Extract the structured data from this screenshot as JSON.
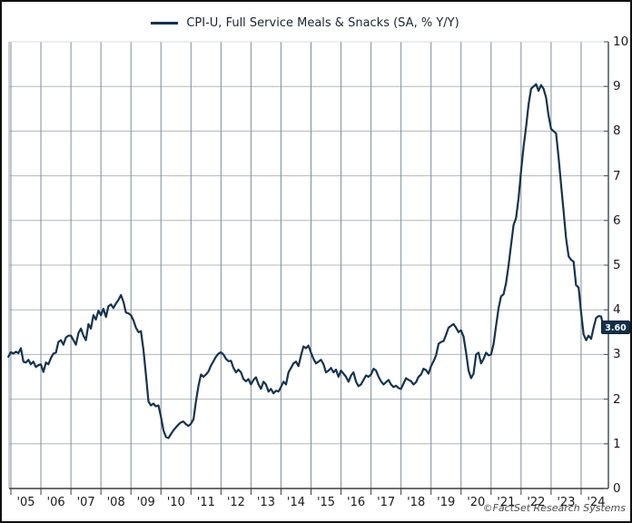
{
  "legend": {
    "label": "CPI-U, Full Service Meals & Snacks (SA, % Y/Y)"
  },
  "footer": {
    "copyright": "©FactSet Research Systems"
  },
  "last_value_badge": "3.60",
  "colors": {
    "line": "#16334e",
    "badge_bg": "#14304a",
    "grid_vertical": "#7f8c98",
    "grid_horizontal": "#aeb7bf",
    "bottom_axis": "#3d3d3d",
    "right_axis": "#46525c",
    "top_border": "#d9dde0",
    "left_border": "#98a2ab",
    "label_text": "#1a1a1a"
  },
  "chart_data": {
    "type": "line",
    "title": "CPI-U, Full Service Meals & Snacks (SA, % Y/Y)",
    "xlabel": "",
    "ylabel": "",
    "ylim": [
      0,
      10
    ],
    "y_ticks": [
      0,
      1,
      2,
      3,
      4,
      5,
      6,
      7,
      8,
      9,
      10
    ],
    "x_ticklabels": [
      "'05",
      "'06",
      "'07",
      "'08",
      "'09",
      "'10",
      "'11",
      "'12",
      "'13",
      "'14",
      "'15",
      "'16",
      "'17",
      "'18",
      "'19",
      "'20",
      "'21",
      "'22",
      "'23",
      "'24"
    ],
    "grid": true,
    "legend_position": "top-center",
    "frequency": "monthly",
    "x_start": "2004-12",
    "x_end": "2024-10",
    "last_value": 3.6,
    "series": [
      {
        "name": "CPI-U, Full Service Meals & Snacks (SA, % Y/Y)",
        "color": "#16334e",
        "values": [
          2.95,
          3.05,
          3.02,
          3.06,
          3.03,
          3.14,
          2.84,
          2.82,
          2.88,
          2.78,
          2.84,
          2.72,
          2.76,
          2.78,
          2.61,
          2.82,
          2.78,
          2.92,
          3.02,
          3.04,
          3.28,
          3.32,
          3.22,
          3.38,
          3.42,
          3.42,
          3.32,
          3.22,
          3.48,
          3.58,
          3.42,
          3.32,
          3.68,
          3.58,
          3.88,
          3.78,
          3.98,
          3.88,
          4.02,
          3.84,
          4.08,
          4.12,
          4.04,
          4.14,
          4.22,
          4.33,
          4.18,
          3.94,
          3.92,
          3.88,
          3.76,
          3.6,
          3.5,
          3.52,
          3.1,
          2.55,
          1.95,
          1.86,
          1.9,
          1.84,
          1.86,
          1.6,
          1.3,
          1.15,
          1.13,
          1.22,
          1.3,
          1.37,
          1.43,
          1.48,
          1.5,
          1.44,
          1.4,
          1.45,
          1.55,
          1.95,
          2.3,
          2.55,
          2.5,
          2.55,
          2.62,
          2.75,
          2.85,
          2.95,
          3.02,
          3.05,
          3.0,
          2.9,
          2.85,
          2.86,
          2.7,
          2.6,
          2.66,
          2.6,
          2.45,
          2.4,
          2.45,
          2.33,
          2.43,
          2.49,
          2.33,
          2.23,
          2.39,
          2.33,
          2.17,
          2.23,
          2.13,
          2.19,
          2.17,
          2.27,
          2.39,
          2.33,
          2.6,
          2.7,
          2.8,
          2.84,
          2.74,
          2.98,
          3.18,
          3.14,
          3.2,
          3.04,
          2.9,
          2.8,
          2.84,
          2.88,
          2.78,
          2.6,
          2.64,
          2.7,
          2.6,
          2.66,
          2.5,
          2.64,
          2.57,
          2.5,
          2.39,
          2.53,
          2.6,
          2.39,
          2.29,
          2.33,
          2.43,
          2.53,
          2.5,
          2.55,
          2.68,
          2.64,
          2.5,
          2.4,
          2.33,
          2.38,
          2.43,
          2.33,
          2.27,
          2.3,
          2.25,
          2.23,
          2.35,
          2.47,
          2.43,
          2.4,
          2.33,
          2.38,
          2.5,
          2.55,
          2.68,
          2.65,
          2.57,
          2.74,
          2.85,
          2.98,
          3.24,
          3.28,
          3.3,
          3.44,
          3.6,
          3.64,
          3.68,
          3.6,
          3.5,
          3.54,
          3.4,
          3.04,
          2.64,
          2.47,
          2.57,
          3.0,
          3.04,
          2.8,
          2.9,
          3.04,
          2.98,
          3.0,
          3.24,
          3.64,
          4.04,
          4.3,
          4.35,
          4.6,
          5.0,
          5.45,
          5.9,
          6.05,
          6.5,
          7.1,
          7.65,
          8.1,
          8.6,
          8.95,
          9.0,
          9.05,
          8.9,
          9.03,
          8.95,
          8.75,
          8.35,
          8.05,
          8.0,
          7.95,
          7.4,
          6.8,
          6.2,
          5.6,
          5.2,
          5.12,
          5.08,
          4.55,
          4.5,
          3.95,
          3.45,
          3.32,
          3.42,
          3.35,
          3.6,
          3.82,
          3.86,
          3.85,
          3.6
        ]
      }
    ]
  }
}
